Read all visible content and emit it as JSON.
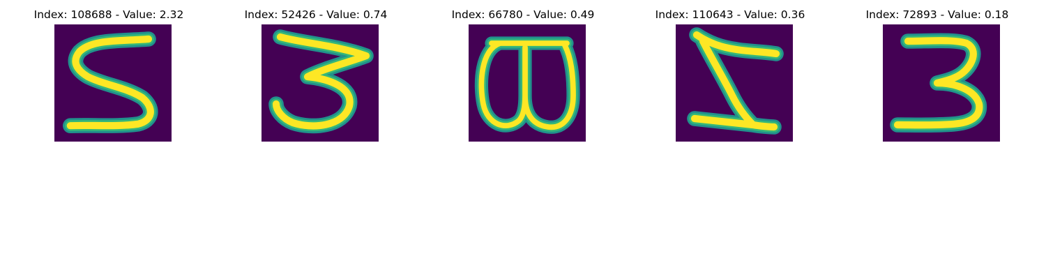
{
  "panels": [
    {
      "title": "Index: 108688 - Value: 2.32",
      "glyph": "5-like"
    },
    {
      "title": "Index: 52426 - Value: 0.74",
      "glyph": "3"
    },
    {
      "title": "Index: 66780 - Value: 0.49",
      "glyph": "rotated-3"
    },
    {
      "title": "Index: 110643 - Value: 0.36",
      "glyph": "mirrored-Z"
    },
    {
      "title": "Index: 72893 - Value: 0.18",
      "glyph": "3"
    }
  ],
  "colors": {
    "background": "#440154",
    "stroke_core": "#fde725",
    "stroke_edge": "#35b779",
    "stroke_outer": "#21918c"
  }
}
